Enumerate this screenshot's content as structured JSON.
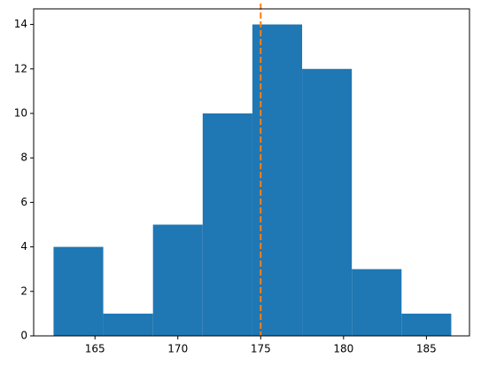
{
  "chart_data": {
    "type": "histogram",
    "bins": [
      162.5,
      165.5,
      168.5,
      171.5,
      174.5,
      177.5,
      180.5,
      183.5,
      186.5
    ],
    "values": [
      4,
      1,
      5,
      10,
      14,
      12,
      3,
      1
    ],
    "color": "#1f77b4",
    "vline": {
      "value": 175,
      "color": "#ff7f0e"
    },
    "xlim": [
      161.3,
      187.6
    ],
    "xticks": [
      165,
      170,
      175,
      180,
      185
    ],
    "ylim": [
      0,
      14.7
    ],
    "yticks": [
      0,
      2,
      4,
      6,
      8,
      10,
      12,
      14
    ],
    "grid": false
  }
}
